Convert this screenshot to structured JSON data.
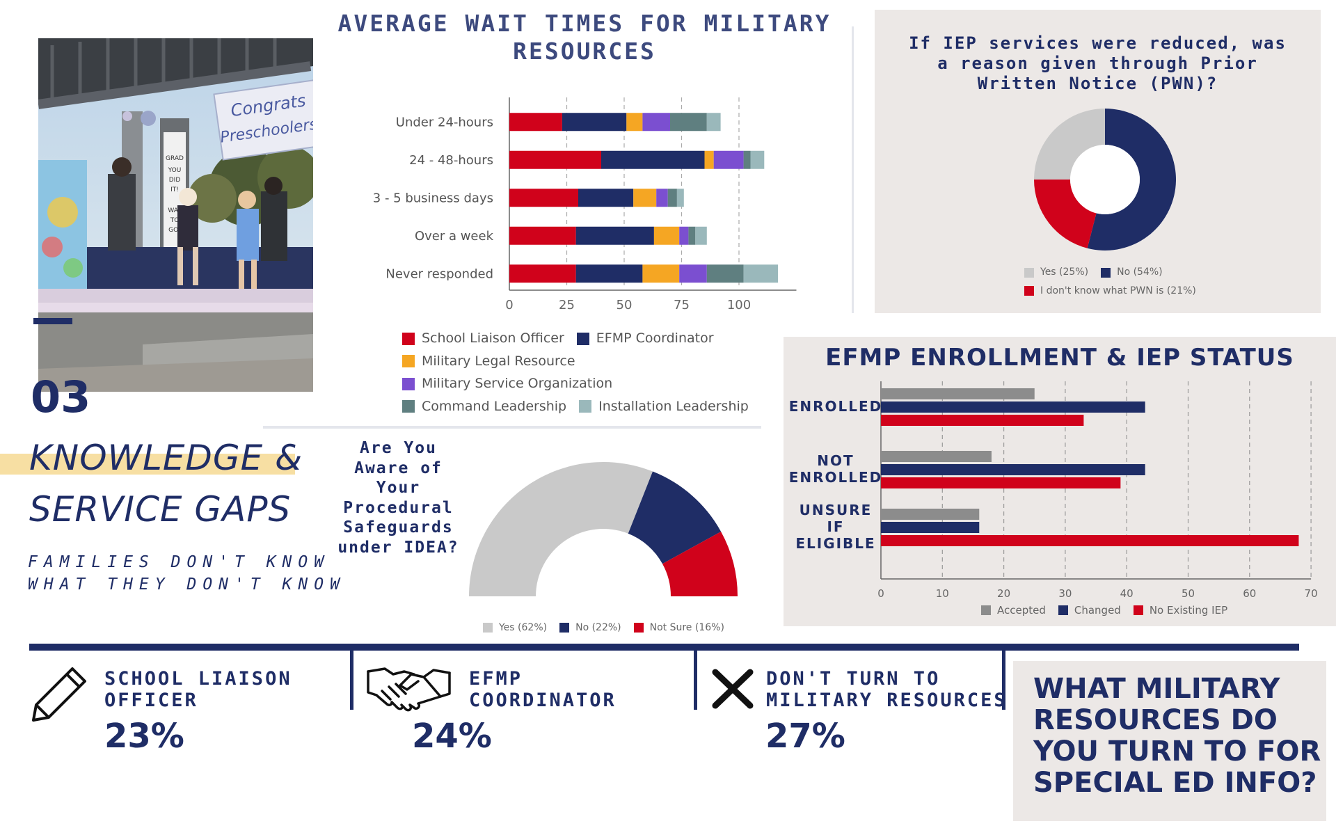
{
  "colors": {
    "navy": "#1f2d66",
    "red": "#d0021b",
    "orange": "#f5a623",
    "purple": "#7b4fd0",
    "teal": "#5f7f80",
    "lightteal": "#9ab8bb",
    "grey": "#c9c9c9",
    "darkgrey": "#8c8c8c",
    "yellow": "#f7dfa3",
    "panel": "#ece8e6"
  },
  "section": {
    "number": "03",
    "title_line1": "KNOWLEDGE &",
    "title_line2": "SERVICE GAPS",
    "subtitle_line1": "FAMILIES DON'T KNOW",
    "subtitle_line2": "WHAT THEY DON'T KNOW"
  },
  "photo": {
    "banner_line1": "Congrats",
    "banner_line2": "Preschoolers!",
    "sign_words": [
      "GRAD",
      "YOU",
      "DID",
      "IT!",
      "WAY",
      "TO",
      "GO!"
    ]
  },
  "chart_data": [
    {
      "id": "wait_times",
      "type": "bar",
      "orientation": "horizontal",
      "stacked": true,
      "title_line1": "AVERAGE WAIT TIMES FOR MILITARY",
      "title_line2": "RESOURCES",
      "categories": [
        "Under 24-hours",
        "24 - 48-hours",
        "3 - 5 business days",
        "Over a week",
        "Never responded"
      ],
      "xticks": [
        "0",
        "25",
        "50",
        "75",
        "100"
      ],
      "xlim": [
        0,
        125
      ],
      "grid": true,
      "legend_position": "bottom",
      "series": [
        {
          "name": "School Liaison Officer",
          "color": "#d0021b",
          "values": [
            23,
            40,
            30,
            29,
            29
          ]
        },
        {
          "name": "EFMP Coordinator",
          "color": "#1f2d66",
          "values": [
            28,
            45,
            24,
            34,
            29
          ]
        },
        {
          "name": "Military Legal Resource",
          "color": "#f5a623",
          "values": [
            7,
            4,
            10,
            11,
            16
          ]
        },
        {
          "name": "Military Service Organization",
          "color": "#7b4fd0",
          "values": [
            12,
            13,
            5,
            4,
            12
          ]
        },
        {
          "name": "Command Leadership",
          "color": "#5f7f80",
          "values": [
            16,
            3,
            4,
            3,
            16
          ]
        },
        {
          "name": "Installation Leadership",
          "color": "#9ab8bb",
          "values": [
            6,
            6,
            3,
            5,
            15
          ]
        }
      ]
    },
    {
      "id": "pwn",
      "type": "pie",
      "donut": true,
      "title_line1": "If IEP services were reduced, was",
      "title_line2": "a reason given through Prior",
      "title_line3": "Written Notice (PWN)?",
      "legend_position": "bottom",
      "slices": [
        {
          "label": "No (54%)",
          "value": 54,
          "color": "#1f2d66"
        },
        {
          "label": "I don't know what PWN is (21%)",
          "value": 21,
          "color": "#d0021b"
        },
        {
          "label": "Yes (25%)",
          "value": 25,
          "color": "#c9c9c9"
        }
      ]
    },
    {
      "id": "safeguards",
      "type": "pie",
      "semicircle": true,
      "title_lines": [
        "Are You",
        "Aware of",
        "Your",
        "Procedural",
        "Safeguards",
        "under IDEA?"
      ],
      "legend_position": "bottom",
      "slices": [
        {
          "label": "Yes (62%)",
          "value": 62,
          "color": "#c9c9c9"
        },
        {
          "label": "No (22%)",
          "value": 22,
          "color": "#1f2d66"
        },
        {
          "label": "Not Sure (16%)",
          "value": 16,
          "color": "#d0021b"
        }
      ]
    },
    {
      "id": "efmp",
      "type": "bar",
      "orientation": "horizontal",
      "stacked": false,
      "title": "EFMP ENROLLMENT & IEP STATUS",
      "categories": [
        [
          "ENROLLED"
        ],
        [
          "NOT",
          "ENROLLED"
        ],
        [
          "UNSURE",
          "IF",
          "ELIGIBLE"
        ]
      ],
      "xticks": [
        "0",
        "10",
        "20",
        "30",
        "40",
        "50",
        "60",
        "70"
      ],
      "xlim": [
        0,
        70
      ],
      "grid": true,
      "legend_position": "bottom",
      "series": [
        {
          "name": "Accepted",
          "color": "#8c8c8c",
          "values": [
            25,
            18,
            16
          ]
        },
        {
          "name": "Changed",
          "color": "#1f2d66",
          "values": [
            43,
            43,
            16
          ]
        },
        {
          "name": "No Existing IEP",
          "color": "#d0021b",
          "values": [
            33,
            39,
            68
          ]
        }
      ]
    }
  ],
  "resources": {
    "question_line1": "WHAT MILITARY",
    "question_line2": "RESOURCES DO",
    "question_line3": "YOU TURN TO FOR",
    "question_line4": "SPECIAL ED INFO?",
    "items": [
      {
        "icon": "pencil-icon",
        "label_line1": "SCHOOL LIAISON",
        "label_line2": "OFFICER",
        "value": "23%"
      },
      {
        "icon": "handshake-icon",
        "label_line1": "EFMP",
        "label_line2": "COORDINATOR",
        "value": "24%"
      },
      {
        "icon": "x-mark-icon",
        "label_line1": "DON'T TURN TO",
        "label_line2": "MILITARY RESOURCES",
        "value": "27%"
      }
    ]
  }
}
